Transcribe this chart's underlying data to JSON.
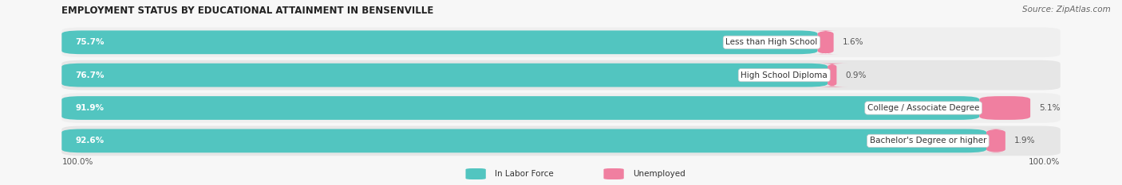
{
  "title": "EMPLOYMENT STATUS BY EDUCATIONAL ATTAINMENT IN BENSENVILLE",
  "source": "Source: ZipAtlas.com",
  "categories": [
    "Less than High School",
    "High School Diploma",
    "College / Associate Degree",
    "Bachelor's Degree or higher"
  ],
  "labor_force": [
    75.7,
    76.7,
    91.9,
    92.6
  ],
  "unemployed": [
    1.6,
    0.9,
    5.1,
    1.9
  ],
  "labor_force_color": "#52c5c0",
  "unemployed_color": "#f07fa0",
  "row_bg_color_odd": "#efefef",
  "row_bg_color_even": "#e6e6e6",
  "label_bg_color": "#ffffff",
  "title_fontsize": 8.5,
  "source_fontsize": 7.5,
  "bar_label_fontsize": 7.5,
  "category_fontsize": 7.5,
  "axis_label_fontsize": 7.5,
  "legend_fontsize": 7.5,
  "x_axis_label_left": "100.0%",
  "x_axis_label_right": "100.0%",
  "figsize": [
    14.06,
    2.33
  ],
  "dpi": 100,
  "fig_bg": "#f7f7f7"
}
